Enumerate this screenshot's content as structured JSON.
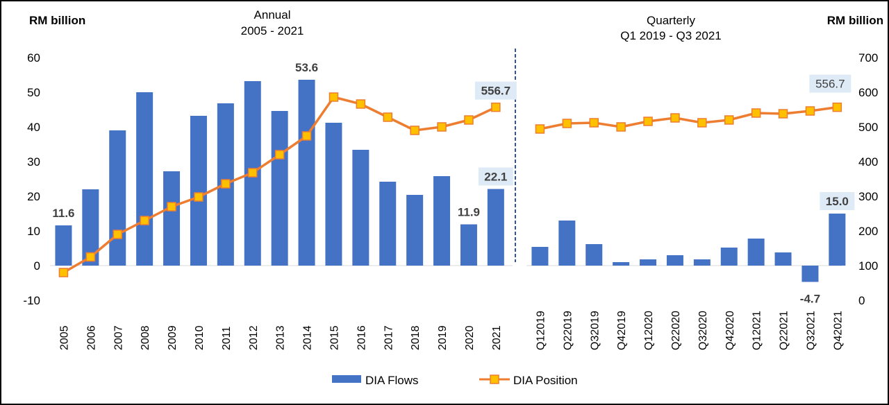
{
  "chart_data": {
    "type": "bar+line",
    "left_axis": {
      "label": "RM billion",
      "ticks": [
        "60",
        "50",
        "40",
        "30",
        "20",
        "10",
        "0",
        "-10"
      ],
      "range": [
        -10,
        60
      ]
    },
    "right_axis": {
      "label": "RM billion",
      "ticks": [
        "700",
        "600",
        "500",
        "400",
        "300",
        "200",
        "100",
        "0"
      ],
      "range": [
        0,
        700
      ]
    },
    "legend": {
      "position": "bottom",
      "entries": [
        {
          "name": "DIA Flows",
          "type": "bar",
          "color": "#4472C4"
        },
        {
          "name": "DIA Position",
          "type": "line-marker",
          "color": "#ED7D31",
          "marker_fill": "#FFC000"
        }
      ]
    },
    "colors": {
      "bar": "#4472C4",
      "line": "#ED7D31",
      "marker": "#FFC000",
      "divider": "#2F5597",
      "label_bg": "#DEEBF7"
    },
    "panels": [
      {
        "title_line1": "Annual",
        "title_line2": "2005 - 2021",
        "categories": [
          "2005",
          "2006",
          "2007",
          "2008",
          "2009",
          "2010",
          "2011",
          "2012",
          "2013",
          "2014",
          "2015",
          "2016",
          "2017",
          "2018",
          "2019",
          "2020",
          "2021"
        ],
        "series": [
          {
            "name": "DIA Flows",
            "axis": "left",
            "values": [
              11.6,
              22.0,
              39.0,
              50.0,
              27.2,
              43.2,
              46.8,
              53.2,
              44.6,
              53.6,
              41.2,
              33.4,
              24.2,
              20.4,
              25.8,
              11.9,
              22.1
            ]
          },
          {
            "name": "DIA Position",
            "axis": "right",
            "values": [
              80,
              125,
              190,
              230,
              270,
              298,
              336,
              368,
              420,
              474,
              586,
              566,
              528,
              490,
              500,
              520,
              556.7
            ]
          }
        ],
        "annotations": [
          {
            "series": "DIA Flows",
            "index": 0,
            "text": "11.6",
            "boxed": false,
            "bold": true
          },
          {
            "series": "DIA Flows",
            "index": 9,
            "text": "53.6",
            "boxed": false,
            "bold": true
          },
          {
            "series": "DIA Flows",
            "index": 15,
            "text": "11.9",
            "boxed": false,
            "bold": true
          },
          {
            "series": "DIA Flows",
            "index": 16,
            "text": "22.1",
            "boxed": true,
            "bold": true
          },
          {
            "series": "DIA Position",
            "index": 16,
            "text": "556.7",
            "boxed": true,
            "bold": true
          }
        ]
      },
      {
        "title_line1": "Quarterly",
        "title_line2": "Q1 2019 - Q3 2021",
        "categories": [
          "Q12019",
          "Q22019",
          "Q32019",
          "Q42019",
          "Q12020",
          "Q22020",
          "Q32020",
          "Q42020",
          "Q12021",
          "Q22021",
          "Q32021",
          "Q42021"
        ],
        "series": [
          {
            "name": "DIA Flows",
            "axis": "left",
            "values": [
              5.4,
              13.0,
              6.2,
              1.0,
              1.8,
              3.0,
              1.8,
              5.2,
              7.8,
              3.8,
              -4.7,
              15.0
            ]
          },
          {
            "name": "DIA Position",
            "axis": "right",
            "values": [
              494,
              510,
              512,
              500,
              516,
              526,
              512,
              520,
              540,
              538,
              546,
              556.7
            ]
          }
        ],
        "annotations": [
          {
            "series": "DIA Flows",
            "index": 10,
            "text": "-4.7",
            "boxed": false,
            "bold": true
          },
          {
            "series": "DIA Flows",
            "index": 11,
            "text": "15.0",
            "boxed": true,
            "bold": true
          },
          {
            "series": "DIA Position",
            "index": 11,
            "text": "556.7",
            "boxed": true,
            "bold": false
          }
        ]
      }
    ]
  }
}
